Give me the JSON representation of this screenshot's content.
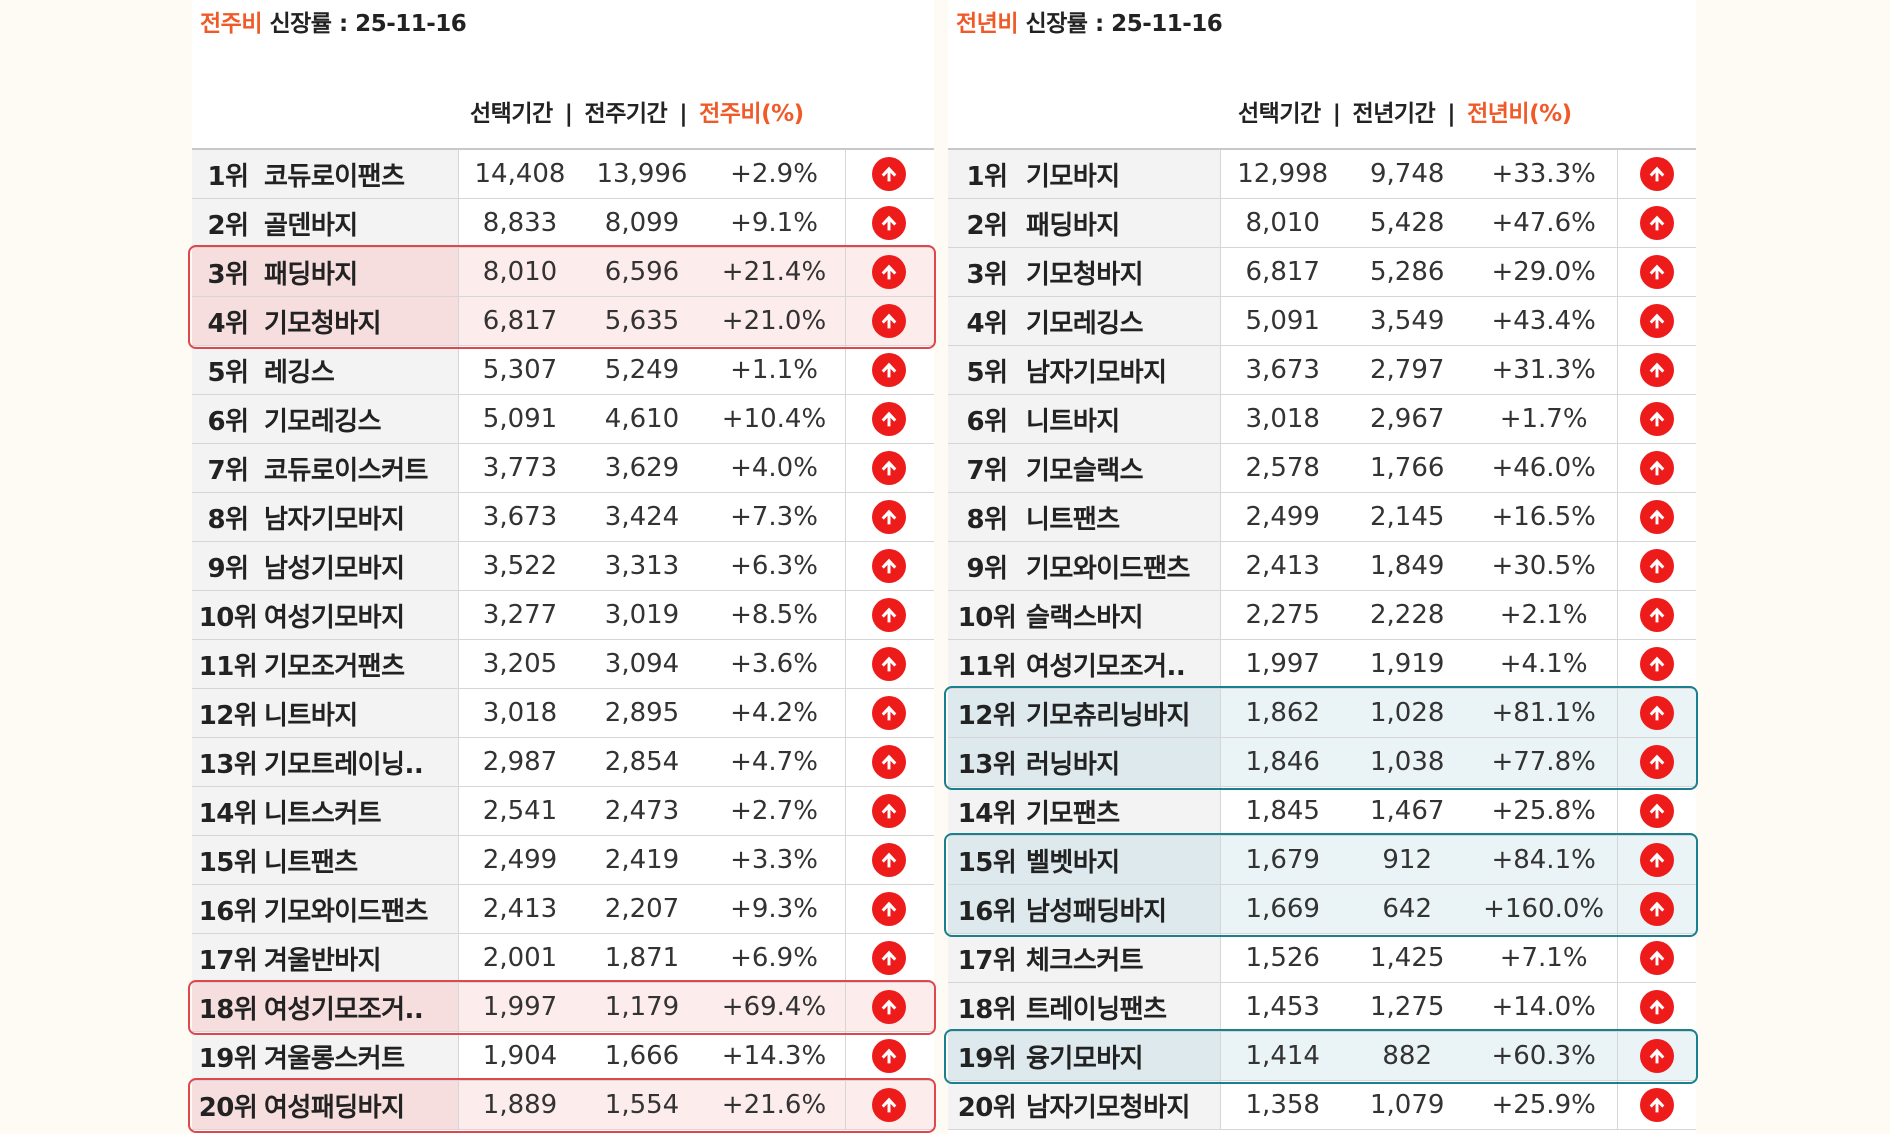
{
  "left": {
    "title_accent": "전주비",
    "title_rest": " 신장률 : 25-11-16",
    "headers": [
      "선택기간",
      "전주기간",
      "전주비(%)"
    ],
    "rows": [
      {
        "rank": "1위",
        "keyword": "코듀로이팬츠",
        "selected": "14,408",
        "previous": "13,996",
        "change": "+2.9%"
      },
      {
        "rank": "2위",
        "keyword": "골덴바지",
        "selected": "8,833",
        "previous": "8,099",
        "change": "+9.1%"
      },
      {
        "rank": "3위",
        "keyword": "패딩바지",
        "selected": "8,010",
        "previous": "6,596",
        "change": "+21.4%"
      },
      {
        "rank": "4위",
        "keyword": "기모청바지",
        "selected": "6,817",
        "previous": "5,635",
        "change": "+21.0%"
      },
      {
        "rank": "5위",
        "keyword": "레깅스",
        "selected": "5,307",
        "previous": "5,249",
        "change": "+1.1%"
      },
      {
        "rank": "6위",
        "keyword": "기모레깅스",
        "selected": "5,091",
        "previous": "4,610",
        "change": "+10.4%"
      },
      {
        "rank": "7위",
        "keyword": "코듀로이스커트",
        "selected": "3,773",
        "previous": "3,629",
        "change": "+4.0%"
      },
      {
        "rank": "8위",
        "keyword": "남자기모바지",
        "selected": "3,673",
        "previous": "3,424",
        "change": "+7.3%"
      },
      {
        "rank": "9위",
        "keyword": "남성기모바지",
        "selected": "3,522",
        "previous": "3,313",
        "change": "+6.3%"
      },
      {
        "rank": "10위",
        "keyword": "여성기모바지",
        "selected": "3,277",
        "previous": "3,019",
        "change": "+8.5%"
      },
      {
        "rank": "11위",
        "keyword": "기모조거팬츠",
        "selected": "3,205",
        "previous": "3,094",
        "change": "+3.6%"
      },
      {
        "rank": "12위",
        "keyword": "니트바지",
        "selected": "3,018",
        "previous": "2,895",
        "change": "+4.2%"
      },
      {
        "rank": "13위",
        "keyword": "기모트레이닝..",
        "selected": "2,987",
        "previous": "2,854",
        "change": "+4.7%"
      },
      {
        "rank": "14위",
        "keyword": "니트스커트",
        "selected": "2,541",
        "previous": "2,473",
        "change": "+2.7%"
      },
      {
        "rank": "15위",
        "keyword": "니트팬츠",
        "selected": "2,499",
        "previous": "2,419",
        "change": "+3.3%"
      },
      {
        "rank": "16위",
        "keyword": "기모와이드팬츠",
        "selected": "2,413",
        "previous": "2,207",
        "change": "+9.3%"
      },
      {
        "rank": "17위",
        "keyword": "겨울반바지",
        "selected": "2,001",
        "previous": "1,871",
        "change": "+6.9%"
      },
      {
        "rank": "18위",
        "keyword": "여성기모조거..",
        "selected": "1,997",
        "previous": "1,179",
        "change": "+69.4%"
      },
      {
        "rank": "19위",
        "keyword": "겨울롱스커트",
        "selected": "1,904",
        "previous": "1,666",
        "change": "+14.3%"
      },
      {
        "rank": "20위",
        "keyword": "여성패딩바지",
        "selected": "1,889",
        "previous": "1,554",
        "change": "+21.6%"
      }
    ]
  },
  "right": {
    "title_accent": "전년비",
    "title_rest": " 신장률 : 25-11-16",
    "headers": [
      "선택기간",
      "전년기간",
      "전년비(%)"
    ],
    "rows": [
      {
        "rank": "1위",
        "keyword": "기모바지",
        "selected": "12,998",
        "previous": "9,748",
        "change": "+33.3%"
      },
      {
        "rank": "2위",
        "keyword": "패딩바지",
        "selected": "8,010",
        "previous": "5,428",
        "change": "+47.6%"
      },
      {
        "rank": "3위",
        "keyword": "기모청바지",
        "selected": "6,817",
        "previous": "5,286",
        "change": "+29.0%"
      },
      {
        "rank": "4위",
        "keyword": "기모레깅스",
        "selected": "5,091",
        "previous": "3,549",
        "change": "+43.4%"
      },
      {
        "rank": "5위",
        "keyword": "남자기모바지",
        "selected": "3,673",
        "previous": "2,797",
        "change": "+31.3%"
      },
      {
        "rank": "6위",
        "keyword": "니트바지",
        "selected": "3,018",
        "previous": "2,967",
        "change": "+1.7%"
      },
      {
        "rank": "7위",
        "keyword": "기모슬랙스",
        "selected": "2,578",
        "previous": "1,766",
        "change": "+46.0%"
      },
      {
        "rank": "8위",
        "keyword": "니트팬츠",
        "selected": "2,499",
        "previous": "2,145",
        "change": "+16.5%"
      },
      {
        "rank": "9위",
        "keyword": "기모와이드팬츠",
        "selected": "2,413",
        "previous": "1,849",
        "change": "+30.5%"
      },
      {
        "rank": "10위",
        "keyword": "슬랙스바지",
        "selected": "2,275",
        "previous": "2,228",
        "change": "+2.1%"
      },
      {
        "rank": "11위",
        "keyword": "여성기모조거..",
        "selected": "1,997",
        "previous": "1,919",
        "change": "+4.1%"
      },
      {
        "rank": "12위",
        "keyword": "기모츄리닝바지",
        "selected": "1,862",
        "previous": "1,028",
        "change": "+81.1%"
      },
      {
        "rank": "13위",
        "keyword": "러닝바지",
        "selected": "1,846",
        "previous": "1,038",
        "change": "+77.8%"
      },
      {
        "rank": "14위",
        "keyword": "기모팬츠",
        "selected": "1,845",
        "previous": "1,467",
        "change": "+25.8%"
      },
      {
        "rank": "15위",
        "keyword": "벨벳바지",
        "selected": "1,679",
        "previous": "912",
        "change": "+84.1%"
      },
      {
        "rank": "16위",
        "keyword": "남성패딩바지",
        "selected": "1,669",
        "previous": "642",
        "change": "+160.0%"
      },
      {
        "rank": "17위",
        "keyword": "체크스커트",
        "selected": "1,526",
        "previous": "1,425",
        "change": "+7.1%"
      },
      {
        "rank": "18위",
        "keyword": "트레이닝팬츠",
        "selected": "1,453",
        "previous": "1,275",
        "change": "+14.0%"
      },
      {
        "rank": "19위",
        "keyword": "융기모바지",
        "selected": "1,414",
        "previous": "882",
        "change": "+60.3%"
      },
      {
        "rank": "20위",
        "keyword": "남자기모청바지",
        "selected": "1,358",
        "previous": "1,079",
        "change": "+25.9%"
      }
    ]
  },
  "colors": {
    "accent": "#f05a28",
    "up_icon": "#ee1b1b",
    "highlight_red": "#e0474c",
    "highlight_teal": "#1a7f8e"
  },
  "icons": {
    "trend": "arrow-up-circle-icon"
  }
}
